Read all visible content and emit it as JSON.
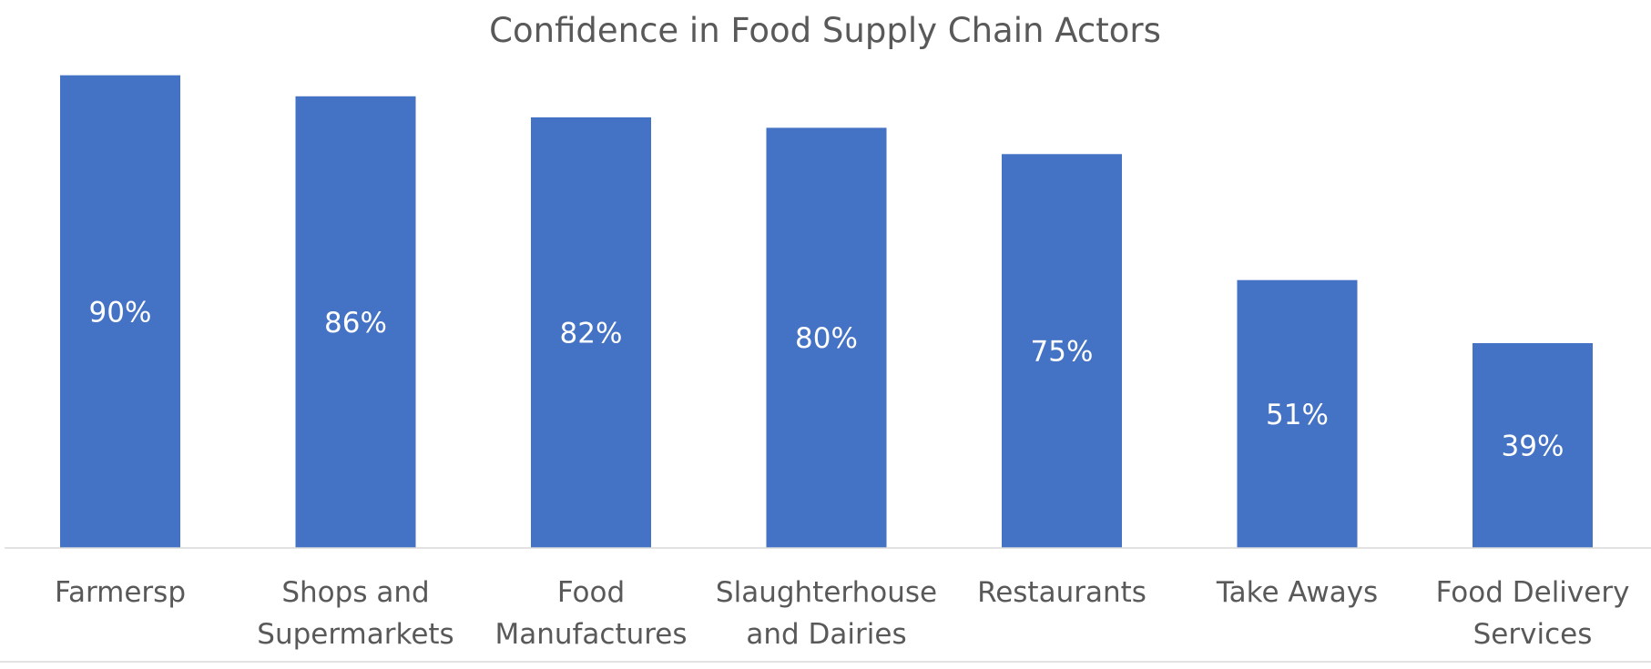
{
  "chart_data": {
    "type": "bar",
    "title": "Confidence in Food Supply Chain Actors",
    "xlabel": "",
    "ylabel": "",
    "ylim": [
      0,
      100
    ],
    "categories": [
      [
        "Farmersp"
      ],
      [
        "Shops and",
        "Supermarkets"
      ],
      [
        "Food",
        "Manufactures"
      ],
      [
        "Slaughterhouse",
        "and Dairies"
      ],
      [
        "Restaurants"
      ],
      [
        "Take Aways"
      ],
      [
        "Food Delivery",
        "Services"
      ]
    ],
    "values": [
      90,
      86,
      82,
      80,
      75,
      51,
      39
    ],
    "data_labels": [
      "90%",
      "86%",
      "82%",
      "80%",
      "75%",
      "51%",
      "39%"
    ],
    "grid": false,
    "legend": "none",
    "colors": {
      "bar": "#4472C4",
      "bar_label": "#FFFFFF",
      "text": "#595959",
      "axis": "#D9D9D9"
    }
  }
}
